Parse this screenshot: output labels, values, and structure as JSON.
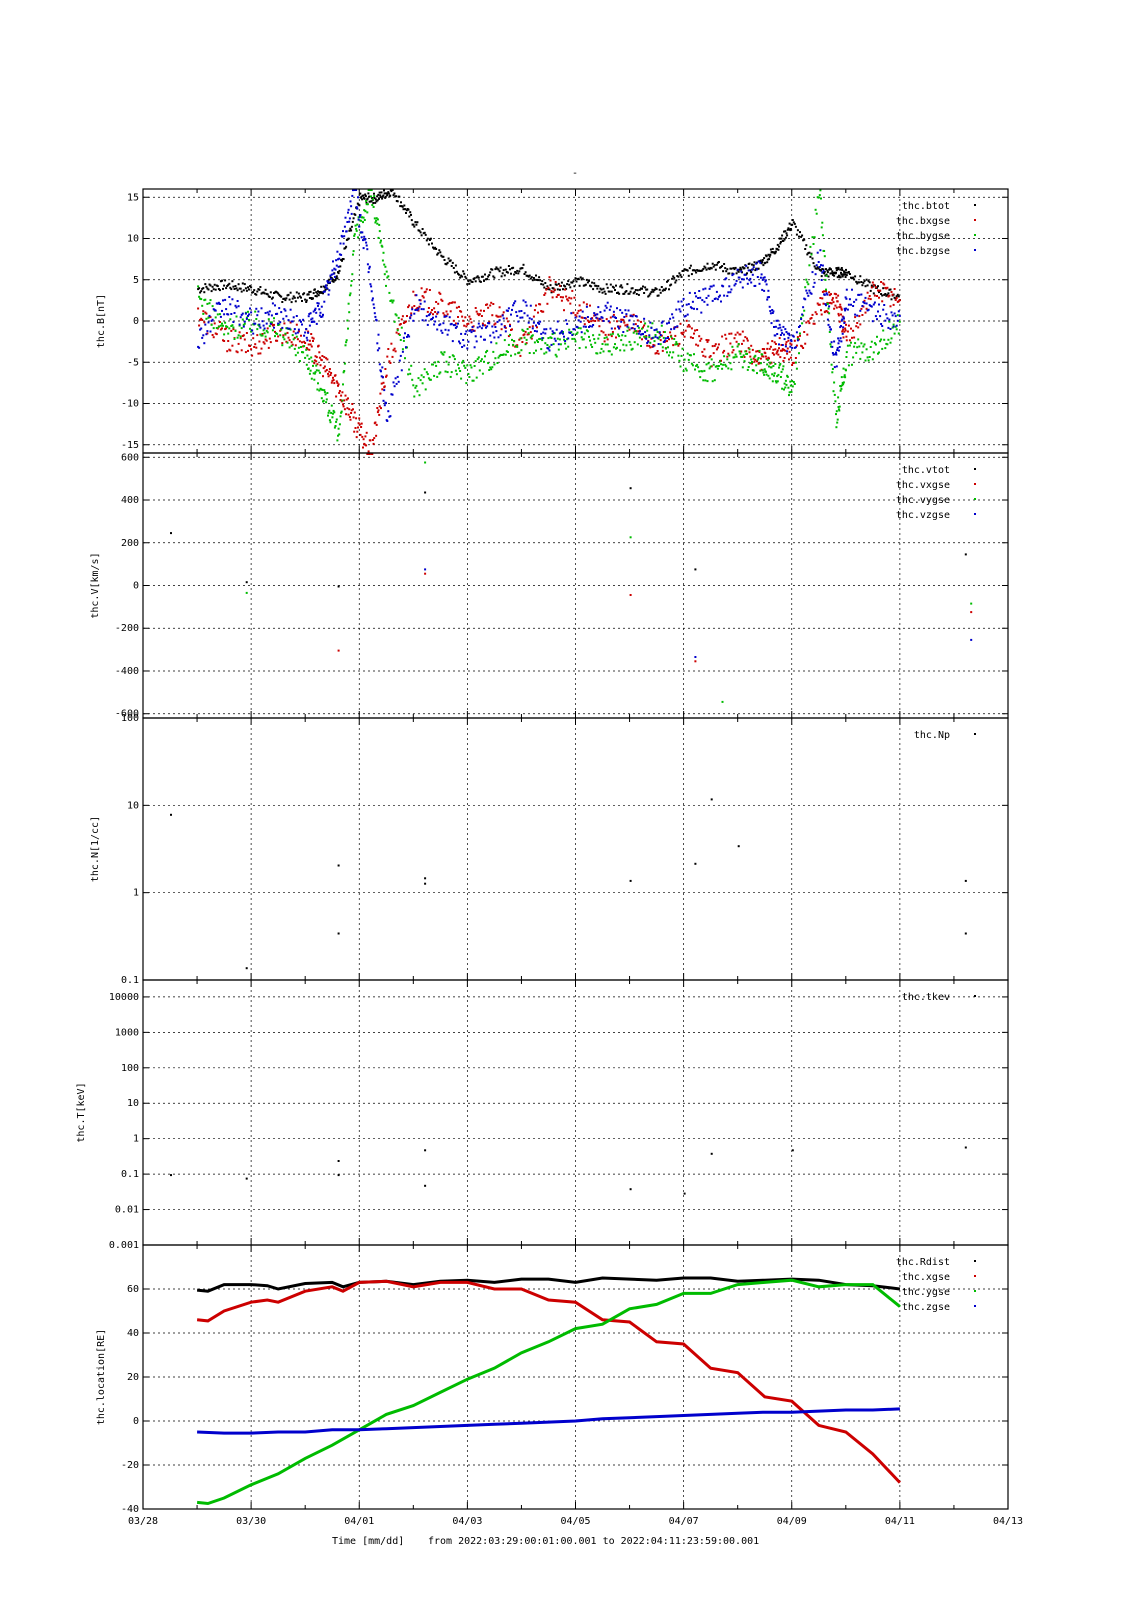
{
  "figure": {
    "title": "-",
    "xlabel": "Time [mm/dd]",
    "time_range_text": "from 2022:03:29:00:01:00.001  to  2022:04:11:23:59:00.001"
  },
  "chart_data": [
    {
      "type": "scatter",
      "id": "B",
      "ylabel": "thc.B[nT]",
      "ylim": [
        -16,
        16
      ],
      "yscale": "linear",
      "yticks": [
        15,
        10,
        5,
        0,
        -5,
        -10,
        -15
      ],
      "ytick_labels": [
        "15",
        "10",
        "5",
        "0",
        "-5",
        "-10",
        "-15"
      ],
      "xlim": [
        "03/28",
        "04/13"
      ],
      "xticks": [
        "03/28",
        "03/30",
        "04/01",
        "04/03",
        "04/05",
        "04/07",
        "04/09",
        "04/11",
        "04/13"
      ],
      "grid": true,
      "legend": "top-right",
      "series": [
        {
          "name": "thc.btot",
          "color": "#000000",
          "x": [
            1.0,
            1.5,
            2.0,
            2.5,
            3.0,
            3.3,
            3.6,
            4.0,
            4.3,
            4.6,
            5.0,
            5.5,
            6.0,
            6.5,
            7.0,
            7.5,
            8.0,
            8.5,
            9.0,
            9.5,
            10.0,
            10.5,
            11.0,
            11.4,
            11.7,
            12.0,
            12.5,
            12.8,
            13.0,
            13.5,
            14.0
          ],
          "y": [
            4,
            4.5,
            4,
            3,
            3,
            4,
            6,
            15,
            15,
            16,
            12,
            8,
            5,
            6,
            6.5,
            4,
            5,
            4,
            4,
            3.5,
            6,
            7,
            6,
            7,
            9,
            12,
            6,
            6,
            6,
            4,
            3
          ]
        },
        {
          "name": "thc.bxgse",
          "color": "#cc0000",
          "x": [
            1.0,
            1.5,
            2.0,
            2.5,
            3.0,
            3.3,
            3.6,
            3.9,
            4.2,
            4.5,
            5.0,
            5.5,
            6.0,
            6.5,
            7.0,
            7.5,
            8.0,
            8.5,
            9.0,
            9.5,
            10.0,
            10.5,
            11.0,
            11.4,
            11.7,
            12.0,
            12.5,
            12.8,
            13.0,
            13.5,
            14.0
          ],
          "y": [
            1,
            -2,
            -3,
            -1,
            -2,
            -5,
            -8,
            -12,
            -16,
            -5,
            3,
            2,
            0,
            1,
            -3,
            4,
            2,
            -1,
            0,
            -3,
            -1,
            -4,
            -2,
            -5,
            -3,
            -4,
            2,
            3,
            -2,
            4,
            3
          ]
        },
        {
          "name": "thc.bygse",
          "color": "#00bb00",
          "x": [
            1.0,
            1.5,
            2.0,
            2.5,
            3.0,
            3.3,
            3.6,
            3.9,
            4.2,
            4.5,
            5.0,
            5.5,
            6.0,
            6.5,
            7.0,
            7.5,
            8.0,
            8.5,
            9.0,
            9.5,
            10.0,
            10.5,
            11.0,
            11.4,
            11.7,
            12.0,
            12.5,
            12.8,
            13.0,
            13.5,
            14.0
          ],
          "y": [
            3,
            -1,
            0,
            -1,
            -4,
            -8,
            -14,
            10,
            16,
            5,
            -8,
            -5,
            -6,
            -4,
            -2,
            -3,
            -2,
            -3,
            -2,
            -1,
            -5,
            -6,
            -4,
            -5,
            -6,
            -8,
            16,
            -12,
            -4,
            -3,
            0
          ]
        },
        {
          "name": "thc.bzgse",
          "color": "#0000cc",
          "x": [
            1.0,
            1.5,
            2.0,
            2.5,
            3.0,
            3.3,
            3.6,
            3.9,
            4.2,
            4.5,
            5.0,
            5.5,
            6.0,
            6.5,
            7.0,
            7.5,
            8.0,
            8.5,
            9.0,
            9.5,
            10.0,
            10.5,
            11.0,
            11.4,
            11.7,
            12.0,
            12.5,
            12.8,
            13.0,
            13.5,
            14.0
          ],
          "y": [
            -2,
            2,
            0,
            1,
            -1,
            2,
            8,
            16,
            5,
            -12,
            2,
            0,
            -2,
            -1,
            2,
            -2,
            0,
            1,
            0,
            -2,
            2,
            3,
            5,
            6,
            -1,
            -3,
            8,
            -5,
            3,
            1,
            0
          ]
        }
      ]
    },
    {
      "type": "scatter",
      "id": "V",
      "ylabel": "thc.V[km/s]",
      "ylim": [
        -620,
        620
      ],
      "yscale": "linear",
      "yticks": [
        600,
        400,
        200,
        0,
        -200,
        -400,
        -600
      ],
      "ytick_labels": [
        "600",
        "400",
        "200",
        "0",
        "-200",
        "-400",
        "-600"
      ],
      "grid": true,
      "legend": "top-right",
      "series": [
        {
          "name": "thc.vtot",
          "color": "#000000",
          "x": [
            0.5,
            1.9,
            3.6,
            5.2,
            9.0,
            10.2,
            15.2
          ],
          "y": [
            250,
            20,
            0,
            440,
            460,
            80,
            150
          ]
        },
        {
          "name": "thc.vxgse",
          "color": "#cc0000",
          "x": [
            3.6,
            5.2,
            9.0,
            10.2,
            15.3
          ],
          "y": [
            -300,
            60,
            -40,
            -350,
            -120
          ]
        },
        {
          "name": "thc.vygse",
          "color": "#00bb00",
          "x": [
            1.9,
            5.2,
            9.0,
            10.7,
            15.3
          ],
          "y": [
            -30,
            580,
            230,
            -540,
            -80
          ]
        },
        {
          "name": "thc.vzgse",
          "color": "#0000cc",
          "x": [
            5.2,
            10.2,
            15.3
          ],
          "y": [
            80,
            -330,
            -250
          ]
        }
      ]
    },
    {
      "type": "scatter",
      "id": "N",
      "ylabel": "thc.N[1/cc]",
      "ylim": [
        0.1,
        100
      ],
      "yscale": "log",
      "yticks": [
        100,
        10,
        1,
        0.1
      ],
      "ytick_labels": [
        "100",
        "10",
        "1",
        "0.1"
      ],
      "grid": true,
      "legend": "top-right",
      "series": [
        {
          "name": "thc.Np",
          "color": "#000000",
          "x": [
            0.5,
            1.9,
            3.6,
            3.6,
            5.2,
            5.2,
            9.0,
            10.2,
            10.5,
            11.0,
            15.2,
            15.2
          ],
          "y": [
            8,
            0.14,
            2.1,
            0.35,
            1.5,
            1.3,
            1.4,
            2.2,
            12,
            3.5,
            1.4,
            0.35
          ]
        }
      ]
    },
    {
      "type": "scatter",
      "id": "T",
      "ylabel": "thc.T[keV]",
      "ylim": [
        0.001,
        30000
      ],
      "yscale": "log",
      "yticks": [
        10000,
        1000,
        100,
        10,
        1,
        0.1,
        0.01,
        0.001
      ],
      "ytick_labels": [
        "10000",
        "1000",
        "100",
        "10",
        "1",
        "0.1",
        "0.01",
        "0.001"
      ],
      "grid": true,
      "legend": "top-right",
      "series": [
        {
          "name": "thc.tkev",
          "color": "#000000",
          "x": [
            0.5,
            1.9,
            3.6,
            3.6,
            5.2,
            5.2,
            9.0,
            10.0,
            10.5,
            12.0,
            15.2
          ],
          "y": [
            0.1,
            0.08,
            0.25,
            0.1,
            0.5,
            0.05,
            0.04,
            0.03,
            0.4,
            0.5,
            0.6
          ]
        }
      ]
    },
    {
      "type": "line",
      "id": "location",
      "ylabel": "thc.location[RE]",
      "ylim": [
        -40,
        80
      ],
      "yscale": "linear",
      "yticks": [
        60,
        40,
        20,
        0,
        -20,
        -40
      ],
      "ytick_labels": [
        "60",
        "40",
        "20",
        "0",
        "-20",
        "-40"
      ],
      "grid": true,
      "legend": "top-right",
      "xtick_labels": [
        "03/28",
        "03/30",
        "04/01",
        "04/03",
        "04/05",
        "04/07",
        "04/09",
        "04/11",
        "04/13"
      ],
      "series": [
        {
          "name": "thc.Rdist",
          "color": "#000000",
          "x": [
            1.0,
            1.2,
            1.5,
            2.0,
            2.3,
            2.5,
            3.0,
            3.5,
            3.7,
            4.0,
            4.5,
            5.0,
            5.5,
            6.0,
            6.5,
            7.0,
            7.5,
            8.0,
            8.5,
            9.0,
            9.5,
            10.0,
            10.5,
            11.0,
            11.5,
            12.0,
            12.5,
            13.0,
            13.5,
            14.0
          ],
          "y": [
            59.5,
            59,
            62,
            62,
            61.5,
            60,
            62.5,
            63,
            61,
            63,
            63.5,
            62,
            63.5,
            64,
            63,
            64.5,
            64.5,
            63,
            65,
            64.5,
            64,
            65,
            65,
            63.5,
            64,
            64.5,
            64,
            62,
            61.5,
            60
          ]
        },
        {
          "name": "thc.xgse",
          "color": "#cc0000",
          "x": [
            1.0,
            1.2,
            1.5,
            2.0,
            2.3,
            2.5,
            3.0,
            3.5,
            3.7,
            4.0,
            4.5,
            5.0,
            5.5,
            6.0,
            6.5,
            7.0,
            7.5,
            8.0,
            8.5,
            9.0,
            9.5,
            10.0,
            10.5,
            11.0,
            11.5,
            12.0,
            12.5,
            13.0,
            13.5,
            14.0
          ],
          "y": [
            46,
            45.5,
            50,
            54,
            55,
            54,
            59,
            61,
            59,
            63,
            63.5,
            61,
            63,
            63,
            60,
            60,
            55,
            54,
            46,
            45,
            36,
            35,
            24,
            22,
            11,
            9,
            -2,
            -5,
            -15,
            -28
          ]
        },
        {
          "name": "thc.ygse",
          "color": "#00bb00",
          "x": [
            1.0,
            1.2,
            1.5,
            2.0,
            2.5,
            3.0,
            3.5,
            4.0,
            4.5,
            5.0,
            5.5,
            6.0,
            6.5,
            7.0,
            7.5,
            8.0,
            8.5,
            9.0,
            9.5,
            10.0,
            10.5,
            11.0,
            11.5,
            12.0,
            12.5,
            13.0,
            13.5,
            14.0
          ],
          "y": [
            -37,
            -37.5,
            -35,
            -29,
            -24,
            -17,
            -11,
            -4,
            3,
            7,
            13,
            19,
            24,
            31,
            36,
            42,
            44,
            51,
            53,
            58,
            58,
            62,
            63,
            64,
            61,
            62,
            62,
            52
          ]
        },
        {
          "name": "thc.zgse",
          "color": "#0000cc",
          "x": [
            1.0,
            1.5,
            2.0,
            2.5,
            3.0,
            3.5,
            4.0,
            4.5,
            5.0,
            5.5,
            6.0,
            6.5,
            7.0,
            7.5,
            8.0,
            8.5,
            9.0,
            9.5,
            10.0,
            10.5,
            11.0,
            11.5,
            12.0,
            12.5,
            13.0,
            13.5,
            14.0
          ],
          "y": [
            -5,
            -5.5,
            -5.5,
            -5,
            -5,
            -4,
            -4,
            -3.5,
            -3,
            -2.5,
            -2,
            -1.5,
            -1,
            -0.5,
            0,
            1,
            1.5,
            2,
            2.5,
            3,
            3.5,
            4,
            4,
            4.5,
            5,
            5,
            5.5
          ]
        }
      ]
    }
  ]
}
